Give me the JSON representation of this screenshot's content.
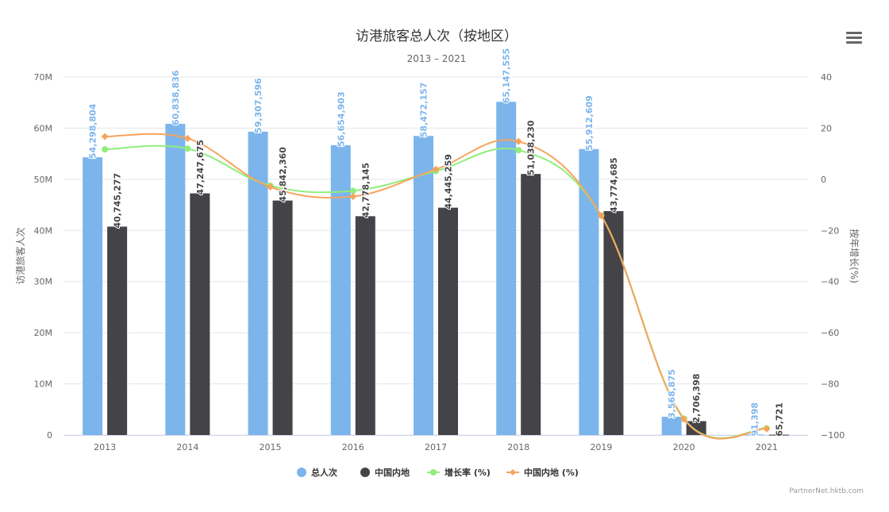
{
  "credit": "PartnerNet.hktb.com",
  "menu_icon": "hamburger-menu-icon",
  "chart_data": {
    "type": "bar+line",
    "title": "访港旅客总人次（按地区）",
    "subtitle": "2013 – 2021",
    "categories": [
      "2013",
      "2014",
      "2015",
      "2016",
      "2017",
      "2018",
      "2019",
      "2020",
      "2021"
    ],
    "yaxis_left": {
      "label": "访港旅客人次",
      "range": [
        0,
        70000000
      ],
      "ticks": [
        "0",
        "10M",
        "20M",
        "30M",
        "40M",
        "50M",
        "60M",
        "70M"
      ]
    },
    "yaxis_right": {
      "label": "按年增长(%)",
      "range": [
        -100,
        40
      ],
      "ticks": [
        "−100",
        "−80",
        "−60",
        "−40",
        "−20",
        "0",
        "20",
        "40"
      ]
    },
    "series": [
      {
        "name": "总人次",
        "kind": "bar",
        "color": "#7cb5ec",
        "values": [
          54298804,
          60838836,
          59307596,
          56654903,
          58472157,
          65147555,
          55912609,
          3568875,
          91398
        ],
        "labels": [
          "54,298,804",
          "60,838,836",
          "59,307,596",
          "56,654,903",
          "58,472,157",
          "65,147,555",
          "55,912,609",
          "3,568,875",
          "91,398"
        ]
      },
      {
        "name": "中国内地",
        "kind": "bar",
        "color": "#434348",
        "values": [
          40745277,
          47247675,
          45842360,
          42778145,
          44445259,
          51038230,
          43774685,
          2706398,
          65721
        ],
        "labels": [
          "40,745,277",
          "47,247,675",
          "45,842,360",
          "42,778,145",
          "44,445,259",
          "51,038,230",
          "43,774,685",
          "2,706,398",
          "65,721"
        ]
      },
      {
        "name": "增长率 (%)",
        "kind": "line",
        "color": "#90ed7d",
        "marker": "circle",
        "values": [
          11.7,
          12.0,
          -2.5,
          -4.5,
          3.2,
          11.4,
          -14.2,
          -93.6,
          -97.4
        ]
      },
      {
        "name": "中国内地 (%)",
        "kind": "line",
        "color": "#f7a35c",
        "marker": "diamond",
        "values": [
          16.7,
          16.0,
          -3.0,
          -6.7,
          3.9,
          14.8,
          -14.2,
          -93.8,
          -97.6
        ]
      }
    ],
    "legend": "bottom-center",
    "grid": true
  }
}
